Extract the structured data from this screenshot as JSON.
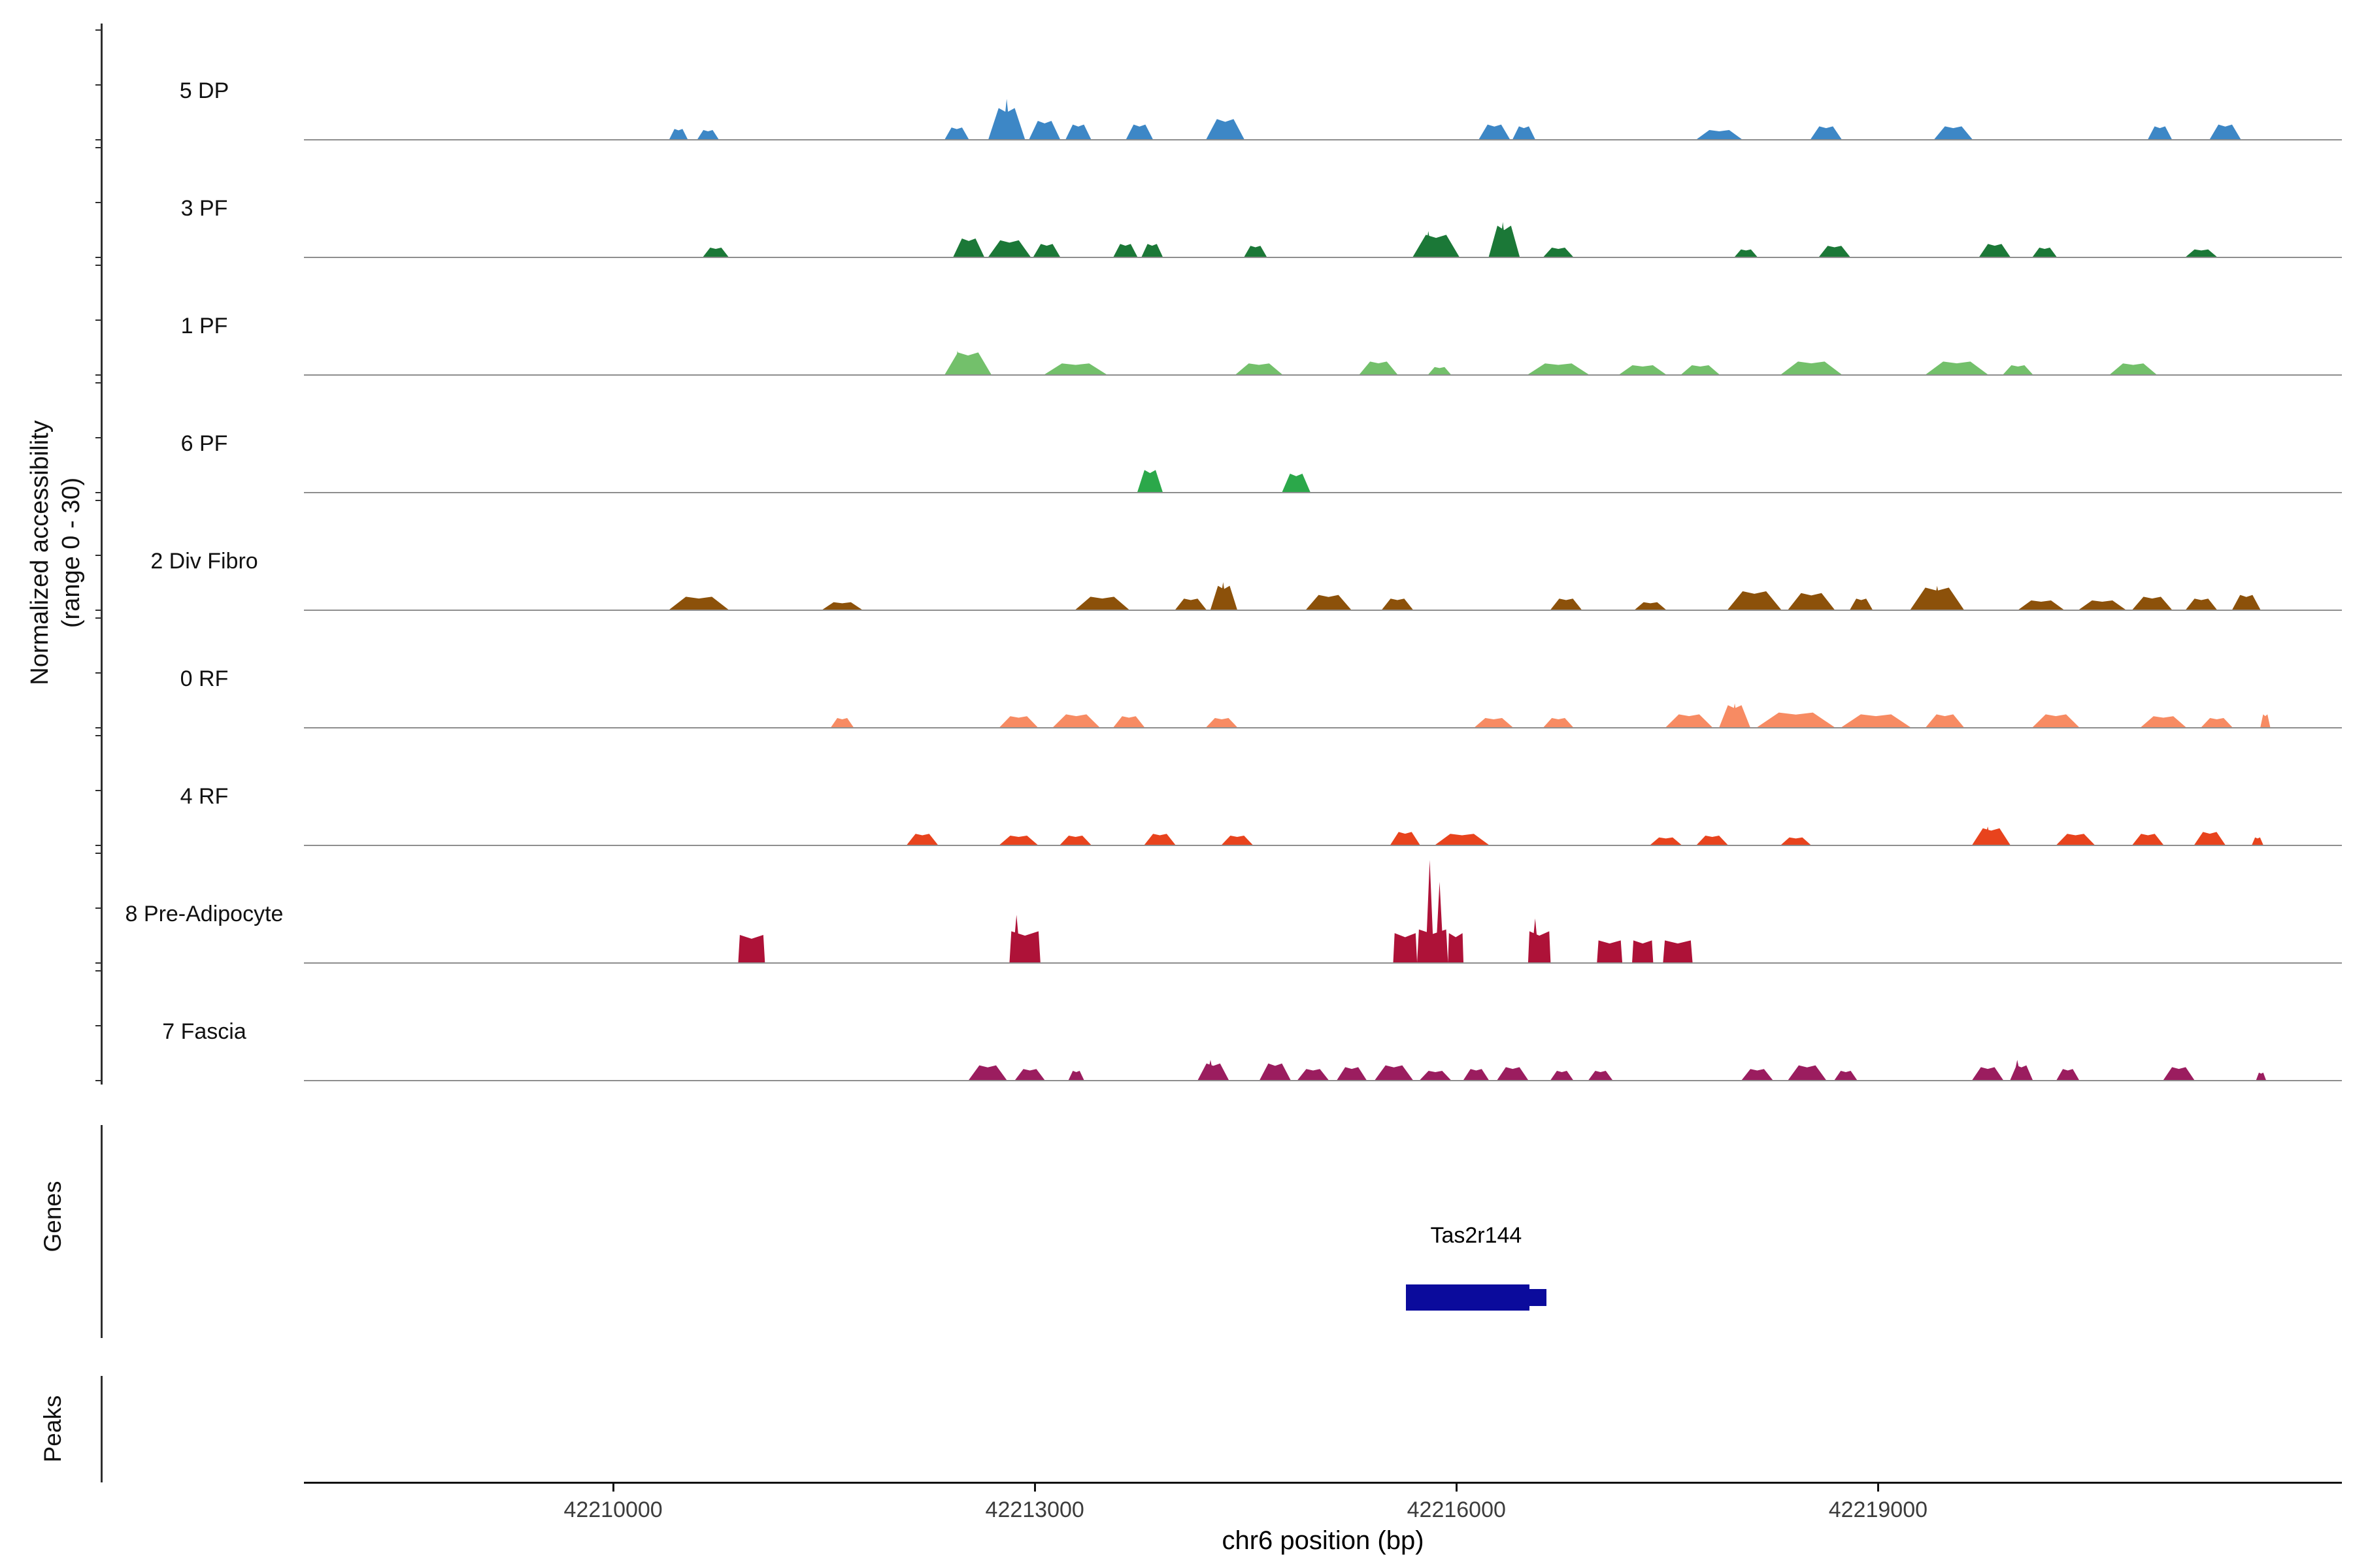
{
  "figure": {
    "y_axis_label_line1": "Normalized accessibility",
    "y_axis_label_line2": "(range 0 - 30)",
    "genes_section_label": "Genes",
    "peaks_section_label": "Peaks",
    "x_axis_title": "chr6 position (bp)"
  },
  "chart_data": {
    "type": "area",
    "subtype": "genome_coverage_tracks",
    "chromosome": "chr6",
    "xlim": [
      42207800,
      42222300
    ],
    "track_ylim": [
      0,
      30
    ],
    "x_ticks": [
      42210000,
      42213000,
      42216000,
      42219000
    ],
    "x_tick_labels": [
      "42210000",
      "42213000",
      "42216000",
      "42219000"
    ],
    "tracks": [
      {
        "label": "5 DP",
        "color": "#3D87C6",
        "peaks": [
          [
            42210400,
            42210530,
            2.8
          ],
          [
            42210600,
            42210750,
            2.5
          ],
          [
            42212360,
            42212530,
            3.2
          ],
          [
            42212670,
            42212930,
            8.5
          ],
          [
            42212960,
            42213180,
            5.0
          ],
          [
            42213220,
            42213400,
            4.0
          ],
          [
            42213650,
            42213840,
            4.0
          ],
          [
            42214220,
            42214490,
            5.5
          ],
          [
            42216160,
            42216380,
            4.0
          ],
          [
            42216400,
            42216560,
            3.5
          ],
          [
            42217710,
            42218030,
            2.5
          ],
          [
            42218520,
            42218740,
            3.5
          ],
          [
            42219400,
            42219670,
            3.5
          ],
          [
            42220920,
            42221090,
            3.5
          ],
          [
            42221360,
            42221580,
            4.0
          ]
        ],
        "spikes": [
          [
            42212800,
            11.0
          ]
        ]
      },
      {
        "label": "3 PF",
        "color": "#1B7837",
        "peaks": [
          [
            42210640,
            42210820,
            2.5
          ],
          [
            42212420,
            42212640,
            5.0
          ],
          [
            42212670,
            42212970,
            4.5
          ],
          [
            42212990,
            42213180,
            3.5
          ],
          [
            42213560,
            42213730,
            3.5
          ],
          [
            42213760,
            42213910,
            3.5
          ],
          [
            42214490,
            42214650,
            3.0
          ],
          [
            42215690,
            42216020,
            6.0
          ],
          [
            42216230,
            42216450,
            8.5
          ],
          [
            42216620,
            42216830,
            2.5
          ],
          [
            42217980,
            42218140,
            2.0
          ],
          [
            42218580,
            42218800,
            3.0
          ],
          [
            42219720,
            42219940,
            3.5
          ],
          [
            42220100,
            42220270,
            2.5
          ],
          [
            42221190,
            42221410,
            2.0
          ]
        ],
        "spikes": [
          [
            42215800,
            7.0
          ],
          [
            42216330,
            9.5
          ]
        ]
      },
      {
        "label": "1 PF",
        "color": "#73C06B",
        "peaks": [
          [
            42212360,
            42212690,
            6.0
          ],
          [
            42213070,
            42213510,
            3.0
          ],
          [
            42214430,
            42214760,
            3.0
          ],
          [
            42215310,
            42215580,
            3.5
          ],
          [
            42215800,
            42215960,
            2.0
          ],
          [
            42216510,
            42216940,
            3.0
          ],
          [
            42217160,
            42217490,
            2.5
          ],
          [
            42217600,
            42217870,
            2.5
          ],
          [
            42218310,
            42218740,
            3.5
          ],
          [
            42219340,
            42219780,
            3.5
          ],
          [
            42219890,
            42220100,
            2.5
          ],
          [
            42220650,
            42220980,
            3.0
          ]
        ],
        "spikes": [
          [
            42212450,
            6.5
          ]
        ]
      },
      {
        "label": "6 PF",
        "color": "#2BA84A",
        "peaks": [
          [
            42213730,
            42213910,
            6.0
          ],
          [
            42214760,
            42214960,
            5.0
          ]
        ],
        "spikes": []
      },
      {
        "label": "2 Div Fibro",
        "color": "#8C510A",
        "peaks": [
          [
            42210400,
            42210820,
            3.5
          ],
          [
            42211490,
            42211770,
            2.0
          ],
          [
            42213290,
            42213670,
            3.5
          ],
          [
            42214000,
            42214220,
            3.0
          ],
          [
            42214250,
            42214440,
            6.5
          ],
          [
            42214930,
            42215250,
            4.0
          ],
          [
            42215470,
            42215690,
            3.0
          ],
          [
            42216670,
            42216890,
            3.0
          ],
          [
            42217270,
            42217490,
            2.0
          ],
          [
            42217930,
            42218310,
            5.0
          ],
          [
            42218360,
            42218690,
            4.5
          ],
          [
            42218800,
            42218960,
            3.0
          ],
          [
            42219230,
            42219610,
            6.0
          ],
          [
            42220000,
            42220320,
            2.5
          ],
          [
            42220430,
            42220760,
            2.5
          ],
          [
            42220810,
            42221090,
            3.5
          ],
          [
            42221190,
            42221410,
            3.0
          ],
          [
            42221520,
            42221720,
            4.0
          ]
        ],
        "spikes": [
          [
            42214340,
            7.5
          ],
          [
            42219420,
            6.5
          ]
        ]
      },
      {
        "label": "0 RF",
        "color": "#F78B63",
        "peaks": [
          [
            42211550,
            42211710,
            2.5
          ],
          [
            42212750,
            42213020,
            3.0
          ],
          [
            42213130,
            42213460,
            3.5
          ],
          [
            42213560,
            42213780,
            3.0
          ],
          [
            42214220,
            42214440,
            2.5
          ],
          [
            42216130,
            42216400,
            2.5
          ],
          [
            42216620,
            42216830,
            2.5
          ],
          [
            42217490,
            42217820,
            3.5
          ],
          [
            42217870,
            42218090,
            6.0
          ],
          [
            42218140,
            42218690,
            4.0
          ],
          [
            42218740,
            42219230,
            3.5
          ],
          [
            42219340,
            42219610,
            3.5
          ],
          [
            42220100,
            42220430,
            3.5
          ],
          [
            42220870,
            42221190,
            3.0
          ],
          [
            42221300,
            42221520,
            2.5
          ],
          [
            42221720,
            42221790,
            3.5
          ]
        ],
        "spikes": [
          [
            42217980,
            6.5
          ]
        ]
      },
      {
        "label": "4 RF",
        "color": "#E8431D",
        "peaks": [
          [
            42212090,
            42212310,
            3.0
          ],
          [
            42212750,
            42213020,
            2.5
          ],
          [
            42213180,
            42213400,
            2.5
          ],
          [
            42213780,
            42214000,
            3.0
          ],
          [
            42214330,
            42214550,
            2.5
          ],
          [
            42215530,
            42215740,
            3.5
          ],
          [
            42215850,
            42216230,
            3.0
          ],
          [
            42217380,
            42217600,
            2.0
          ],
          [
            42217710,
            42217930,
            2.5
          ],
          [
            42218310,
            42218520,
            2.0
          ],
          [
            42219670,
            42219940,
            4.5
          ],
          [
            42220270,
            42220540,
            3.0
          ],
          [
            42220810,
            42221030,
            3.0
          ],
          [
            42221250,
            42221470,
            3.5
          ],
          [
            42221660,
            42221740,
            2.0
          ]
        ],
        "spikes": [
          [
            42219780,
            5.0
          ]
        ]
      },
      {
        "label": "8 Pre-Adipocyte",
        "color": "#AE1238",
        "ramp": 0.06,
        "peaks": [
          [
            42210890,
            42211080,
            7.5
          ],
          [
            42212820,
            42213040,
            8.5
          ],
          [
            42215550,
            42215720,
            8.0
          ],
          [
            42215720,
            42215940,
            9.0
          ],
          [
            42215940,
            42216050,
            8.0
          ],
          [
            42216510,
            42216670,
            8.5
          ],
          [
            42217000,
            42217180,
            6.0
          ],
          [
            42217250,
            42217400,
            6.0
          ],
          [
            42217470,
            42217680,
            6.0
          ]
        ],
        "spikes": [
          [
            42212870,
            13.0
          ],
          [
            42215810,
            28.0
          ],
          [
            42215880,
            22.0
          ],
          [
            42216560,
            12.0
          ]
        ]
      },
      {
        "label": "7 Fascia",
        "color": "#9B1D5F",
        "peaks": [
          [
            42212530,
            42212800,
            4.0
          ],
          [
            42212860,
            42213070,
            3.0
          ],
          [
            42213240,
            42213350,
            2.5
          ],
          [
            42214160,
            42214380,
            4.5
          ],
          [
            42214600,
            42214820,
            4.5
          ],
          [
            42214870,
            42215090,
            3.0
          ],
          [
            42215150,
            42215360,
            3.5
          ],
          [
            42215420,
            42215690,
            4.0
          ],
          [
            42215740,
            42215960,
            2.5
          ],
          [
            42216050,
            42216230,
            3.0
          ],
          [
            42216290,
            42216510,
            3.5
          ],
          [
            42216670,
            42216830,
            2.5
          ],
          [
            42216940,
            42217110,
            2.5
          ],
          [
            42218030,
            42218250,
            3.0
          ],
          [
            42218360,
            42218630,
            4.0
          ],
          [
            42218690,
            42218850,
            2.5
          ],
          [
            42219670,
            42219890,
            3.5
          ],
          [
            42219940,
            42220100,
            4.0
          ],
          [
            42220270,
            42220430,
            3.0
          ],
          [
            42221030,
            42221250,
            3.5
          ],
          [
            42221690,
            42221760,
            2.0
          ]
        ],
        "spikes": [
          [
            42214250,
            5.5
          ],
          [
            42219990,
            5.5
          ]
        ]
      }
    ],
    "gene": {
      "name": "Tas2r144",
      "color": "#0B0B9C",
      "thick_start": 42215640,
      "thick_end": 42216520,
      "thin_end": 42216640
    },
    "peaks_track_items": []
  }
}
